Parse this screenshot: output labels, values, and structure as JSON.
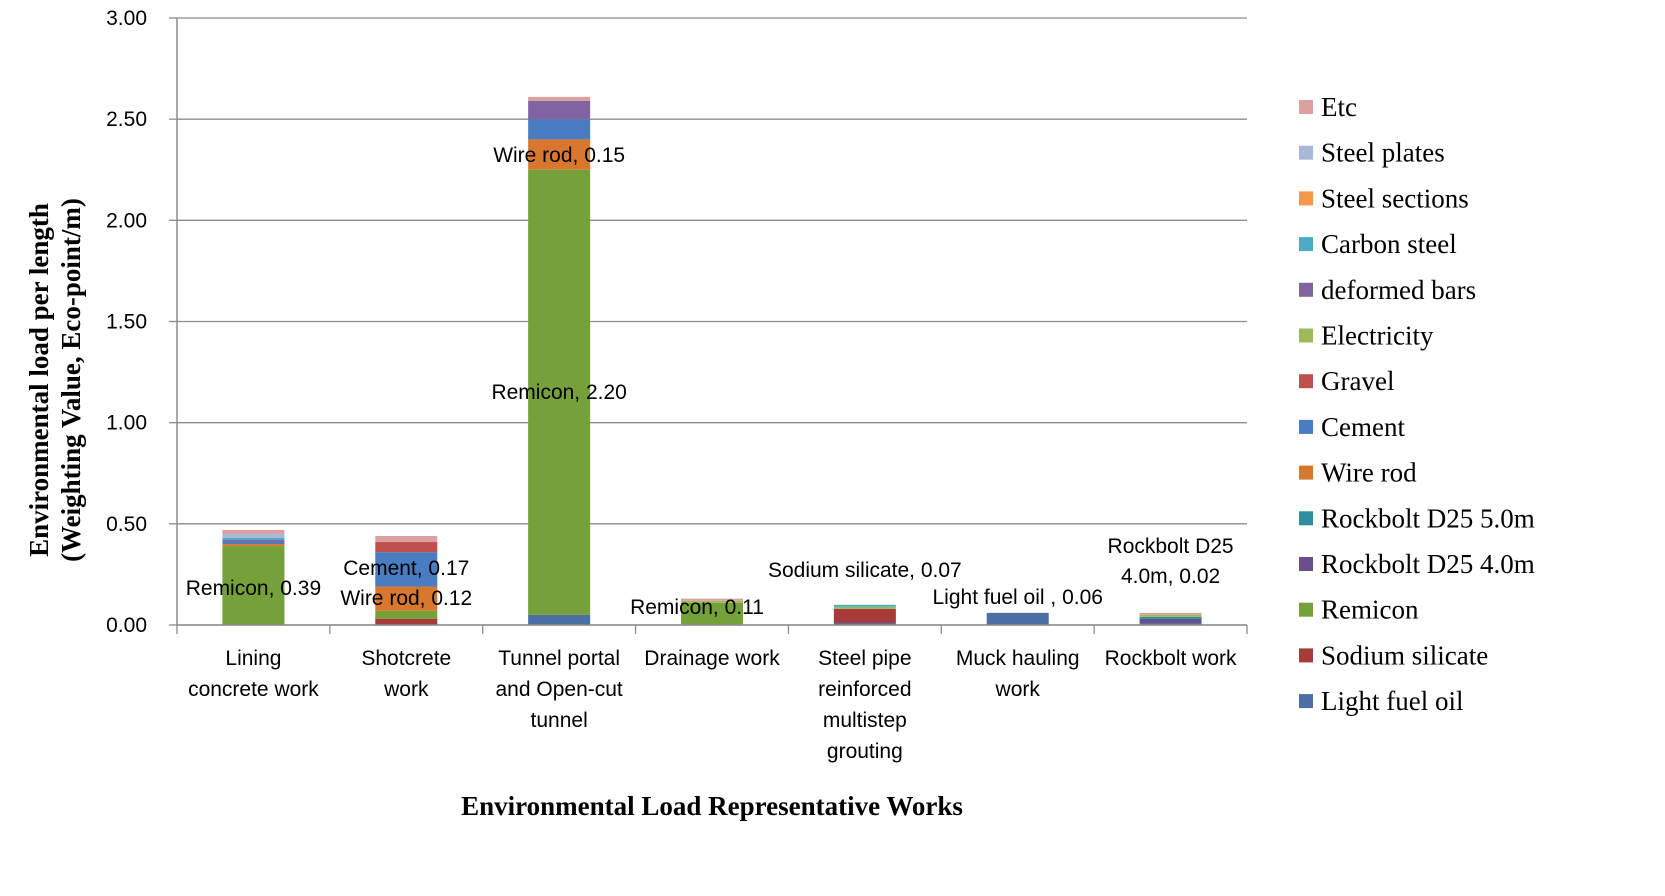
{
  "chart_data": {
    "type": "bar",
    "stacked": true,
    "title": "",
    "xlabel": "Environmental Load Representative Works",
    "ylabel_lines": [
      "Environmental load per length",
      "(Weighting Value, Eco-point/m)"
    ],
    "ylim": [
      0,
      3
    ],
    "yticks": [
      "0.00",
      "0.50",
      "1.00",
      "1.50",
      "2.00",
      "2.50",
      "3.00"
    ],
    "grid": true,
    "legend_position": "right",
    "categories": [
      [
        "Lining",
        "concrete work"
      ],
      [
        "Shotcrete",
        "work"
      ],
      [
        "Tunnel portal",
        "and Open-cut",
        "tunnel"
      ],
      [
        "Drainage work"
      ],
      [
        "Steel pipe",
        "reinforced",
        "multistep",
        "grouting"
      ],
      [
        "Muck hauling",
        "work"
      ],
      [
        "Rockbolt work"
      ]
    ],
    "series": [
      {
        "name": "Light fuel oil",
        "color": "#4A6FA5",
        "values": [
          0.0,
          0.0,
          0.05,
          0.0,
          0.01,
          0.06,
          0.01
        ]
      },
      {
        "name": "Sodium silicate",
        "color": "#A83A3A",
        "values": [
          0.0,
          0.03,
          0.0,
          0.0,
          0.07,
          0.0,
          0.0
        ]
      },
      {
        "name": "Remicon",
        "color": "#76A03A",
        "values": [
          0.39,
          0.04,
          2.2,
          0.11,
          0.0,
          0.0,
          0.0
        ]
      },
      {
        "name": "Rockbolt D25 4.0m",
        "color": "#6A4E8C",
        "values": [
          0.0,
          0.0,
          0.0,
          0.0,
          0.0,
          0.0,
          0.02
        ]
      },
      {
        "name": "Rockbolt D25 5.0m",
        "color": "#2E8FA0",
        "values": [
          0.0,
          0.0,
          0.0,
          0.0,
          0.0,
          0.0,
          0.01
        ]
      },
      {
        "name": "Wire rod",
        "color": "#D8782F",
        "values": [
          0.01,
          0.12,
          0.15,
          0.0,
          0.0,
          0.0,
          0.0
        ]
      },
      {
        "name": "Cement",
        "color": "#4A7CC2",
        "values": [
          0.01,
          0.17,
          0.1,
          0.0,
          0.0,
          0.0,
          0.0
        ]
      },
      {
        "name": "Gravel",
        "color": "#C0504D",
        "values": [
          0.0,
          0.05,
          0.0,
          0.0,
          0.0,
          0.0,
          0.0
        ]
      },
      {
        "name": "Electricity",
        "color": "#9BBB59",
        "values": [
          0.0,
          0.0,
          0.0,
          0.01,
          0.01,
          0.0,
          0.01
        ]
      },
      {
        "name": "deformed bars",
        "color": "#8064A2",
        "values": [
          0.01,
          0.0,
          0.09,
          0.0,
          0.0,
          0.0,
          0.0
        ]
      },
      {
        "name": "Carbon steel",
        "color": "#4BACC6",
        "values": [
          0.01,
          0.0,
          0.0,
          0.0,
          0.01,
          0.0,
          0.0
        ]
      },
      {
        "name": "Steel sections",
        "color": "#F79646",
        "values": [
          0.0,
          0.0,
          0.0,
          0.0,
          0.0,
          0.0,
          0.0
        ]
      },
      {
        "name": "Steel plates",
        "color": "#A9B8D9",
        "values": [
          0.02,
          0.0,
          0.0,
          0.0,
          0.0,
          0.0,
          0.0
        ]
      },
      {
        "name": "Etc",
        "color": "#DDA0A0",
        "values": [
          0.02,
          0.03,
          0.02,
          0.01,
          0.0,
          0.0,
          0.01
        ]
      }
    ],
    "annotations": [
      {
        "lines": [
          "Remicon, 0.39"
        ],
        "category": 0
      },
      {
        "lines": [
          "Cement,  0.17"
        ],
        "category": 1
      },
      {
        "lines": [
          "Wire rod, 0.12"
        ],
        "category": 1
      },
      {
        "lines": [
          "Wire rod, 0.15"
        ],
        "category": 2
      },
      {
        "lines": [
          "Remicon,  2.20"
        ],
        "category": 2
      },
      {
        "lines": [
          "Remicon, 0.11"
        ],
        "category": 3
      },
      {
        "lines": [
          "Sodium silicate, 0.07"
        ],
        "category": 4
      },
      {
        "lines": [
          "Light fuel oil , 0.06"
        ],
        "category": 5
      },
      {
        "lines": [
          "Rockbolt D25",
          "4.0m, 0.02"
        ],
        "category": 6
      }
    ]
  }
}
